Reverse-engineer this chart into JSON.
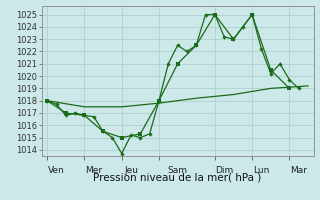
{
  "xlabel": "Pression niveau de la mer( hPa )",
  "bg_color": "#cce8e8",
  "grid_color": "#aacccc",
  "line_color": "#1a6b1a",
  "ylim": [
    1013.5,
    1025.7
  ],
  "xlim": [
    -0.3,
    14.3
  ],
  "day_labels": [
    "Ven",
    "Mer",
    "Jeu",
    "Sam",
    "Dim",
    "Lun",
    "Mar"
  ],
  "day_positions": [
    0.5,
    2.5,
    4.5,
    7.0,
    9.5,
    11.5,
    13.5
  ],
  "day_tick_positions": [
    0,
    2,
    4,
    6,
    9,
    11,
    13
  ],
  "yticks": [
    1014,
    1015,
    1016,
    1017,
    1018,
    1019,
    1020,
    1021,
    1022,
    1023,
    1024,
    1025
  ],
  "series1": {
    "x": [
      0,
      0.5,
      1,
      1.5,
      2,
      2.5,
      3,
      3.5,
      4,
      4.5,
      5,
      5.5,
      6,
      6.5,
      7,
      7.5,
      8,
      8.5,
      9,
      9.5,
      10,
      10.5,
      11,
      11.5,
      12,
      12.5,
      13,
      13.5
    ],
    "y": [
      1018,
      1017.7,
      1016.8,
      1017,
      1016.8,
      1016.7,
      1015.5,
      1015,
      1013.7,
      1015.2,
      1015.0,
      1015.3,
      1018.0,
      1021.0,
      1022.5,
      1022.0,
      1022.5,
      1025.0,
      1025.0,
      1023.2,
      1023.0,
      1024.0,
      1025.0,
      1022.2,
      1020.2,
      1021.0,
      1019.7,
      1019.0
    ]
  },
  "series2": {
    "x": [
      0,
      1,
      2,
      3,
      4,
      5,
      6,
      7,
      8,
      9,
      10,
      11,
      12,
      13
    ],
    "y": [
      1018.0,
      1017.0,
      1016.8,
      1015.5,
      1015.0,
      1015.3,
      1018.0,
      1021.0,
      1022.5,
      1025.0,
      1023.0,
      1025.0,
      1020.5,
      1019.0
    ]
  },
  "series3": {
    "x": [
      0,
      2,
      4,
      6,
      8,
      10,
      12,
      14
    ],
    "y": [
      1018.0,
      1017.5,
      1017.5,
      1017.8,
      1018.2,
      1018.5,
      1019.0,
      1019.2
    ]
  }
}
